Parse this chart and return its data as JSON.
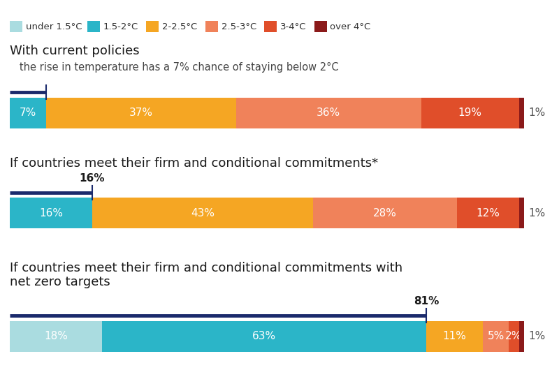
{
  "legend_items": [
    {
      "label": "under 1.5°C",
      "color": "#aadce0"
    },
    {
      "label": "1.5-2°C",
      "color": "#2bb5c8"
    },
    {
      "label": "2-2.5°C",
      "color": "#f5a623"
    },
    {
      "label": "2.5-3°C",
      "color": "#f0825a"
    },
    {
      "label": "3-4°C",
      "color": "#e04e2a"
    },
    {
      "label": "over 4°C",
      "color": "#8b1a1a"
    }
  ],
  "scenarios": [
    {
      "title": "With current policies",
      "subtitle": "   the rise in temperature has a 7% chance of staying below 2°C",
      "indicator_pct": 7,
      "indicator_label": null,
      "indicator_bold": false,
      "segments": [
        {
          "value": 7,
          "color": "#2bb5c8",
          "label": "7%",
          "text_color": "#ffffff"
        },
        {
          "value": 37,
          "color": "#f5a623",
          "label": "37%",
          "text_color": "#ffffff"
        },
        {
          "value": 36,
          "color": "#f0825a",
          "label": "36%",
          "text_color": "#ffffff"
        },
        {
          "value": 19,
          "color": "#e04e2a",
          "label": "19%",
          "text_color": "#ffffff"
        },
        {
          "value": 1,
          "color": "#8b1a1a",
          "label": "1%",
          "text_color": "#555555",
          "outside": true
        }
      ]
    },
    {
      "title": "If countries meet their firm and conditional commitments*",
      "subtitle": null,
      "indicator_pct": 16,
      "indicator_label": "16%",
      "indicator_bold": true,
      "segments": [
        {
          "value": 16,
          "color": "#2bb5c8",
          "label": "16%",
          "text_color": "#ffffff"
        },
        {
          "value": 43,
          "color": "#f5a623",
          "label": "43%",
          "text_color": "#ffffff"
        },
        {
          "value": 28,
          "color": "#f0825a",
          "label": "28%",
          "text_color": "#ffffff"
        },
        {
          "value": 12,
          "color": "#e04e2a",
          "label": "12%",
          "text_color": "#ffffff"
        },
        {
          "value": 1,
          "color": "#8b1a1a",
          "label": "1%",
          "text_color": "#555555",
          "outside": true
        }
      ]
    },
    {
      "title_line1": "If countries meet their firm and conditional commitments with",
      "title_line2": "net zero targets",
      "subtitle": null,
      "indicator_pct": 81,
      "indicator_label": "81%",
      "indicator_bold": true,
      "segments": [
        {
          "value": 18,
          "color": "#aadce0",
          "label": "18%",
          "text_color": "#ffffff"
        },
        {
          "value": 63,
          "color": "#2bb5c8",
          "label": "63%",
          "text_color": "#ffffff"
        },
        {
          "value": 11,
          "color": "#f5a623",
          "label": "11%",
          "text_color": "#ffffff"
        },
        {
          "value": 5,
          "color": "#f0825a",
          "label": "5%",
          "text_color": "#ffffff"
        },
        {
          "value": 2,
          "color": "#e04e2a",
          "label": "2%",
          "text_color": "#ffffff"
        },
        {
          "value": 1,
          "color": "#8b1a1a",
          "label": "1%",
          "text_color": "#555555",
          "outside": true
        }
      ]
    }
  ],
  "bg_color": "#ffffff",
  "bar_text_color": "#ffffff",
  "outside_text_color": "#555555",
  "indicator_line_color": "#1a2a6c",
  "title_fontsize": 13,
  "subtitle_fontsize": 10.5,
  "label_fontsize": 11
}
